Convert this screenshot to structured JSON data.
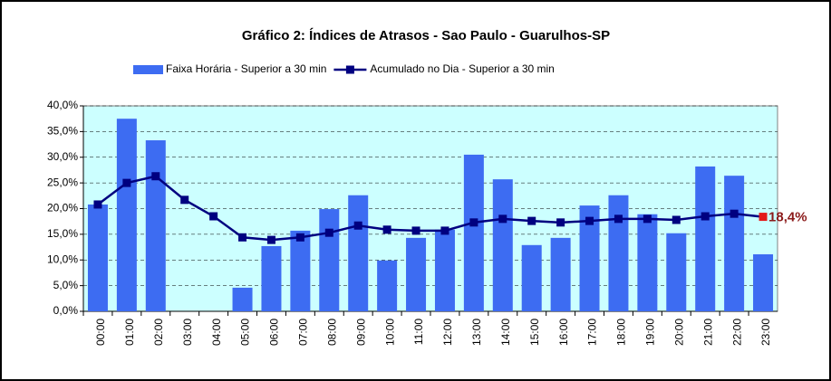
{
  "chart_data": {
    "type": "bar",
    "title": "Gráfico 2: Índices de Atrasos - Sao Paulo - Guarulhos-SP",
    "categories": [
      "00:00",
      "01:00",
      "02:00",
      "03:00",
      "04:00",
      "05:00",
      "06:00",
      "07:00",
      "08:00",
      "09:00",
      "10:00",
      "11:00",
      "12:00",
      "13:00",
      "14:00",
      "15:00",
      "16:00",
      "17:00",
      "18:00",
      "19:00",
      "20:00",
      "21:00",
      "22:00",
      "23:00"
    ],
    "series": [
      {
        "name": "Faixa Horária - Superior a 30 min",
        "type": "bar",
        "color": "#3d6cf2",
        "values": [
          20.8,
          37.5,
          33.3,
          0,
          0,
          4.6,
          12.7,
          15.7,
          19.9,
          22.6,
          9.9,
          14.3,
          15.9,
          30.5,
          25.7,
          12.9,
          14.3,
          20.6,
          22.6,
          18.9,
          15.2,
          28.2,
          26.4,
          11.1
        ]
      },
      {
        "name": "Acumulado no Dia - Superior a 30 min",
        "type": "line",
        "color": "#000080",
        "values": [
          20.8,
          25.0,
          26.3,
          21.7,
          18.5,
          14.4,
          13.9,
          14.4,
          15.3,
          16.7,
          15.9,
          15.7,
          15.7,
          17.3,
          18.0,
          17.6,
          17.3,
          17.6,
          18.0,
          18.0,
          17.8,
          18.5,
          19.0,
          18.4
        ],
        "value_labels": [
          null,
          null,
          null,
          null,
          null,
          null,
          null,
          null,
          null,
          null,
          null,
          null,
          null,
          null,
          null,
          null,
          null,
          null,
          null,
          null,
          null,
          null,
          null,
          "18,4%"
        ]
      }
    ],
    "ylim": [
      0,
      40
    ],
    "yticks": [
      {
        "value": 0,
        "label": "0,0%"
      },
      {
        "value": 5,
        "label": "5,0%"
      },
      {
        "value": 10,
        "label": "10,0%"
      },
      {
        "value": 15,
        "label": "15,0%"
      },
      {
        "value": 20,
        "label": "20,0%"
      },
      {
        "value": 25,
        "label": "25,0%"
      },
      {
        "value": 30,
        "label": "30,0%"
      },
      {
        "value": 35,
        "label": "35,0%"
      },
      {
        "value": 40,
        "label": "40,0%"
      }
    ],
    "grid": true,
    "legend": "top",
    "plot_background": "#ccffff"
  }
}
